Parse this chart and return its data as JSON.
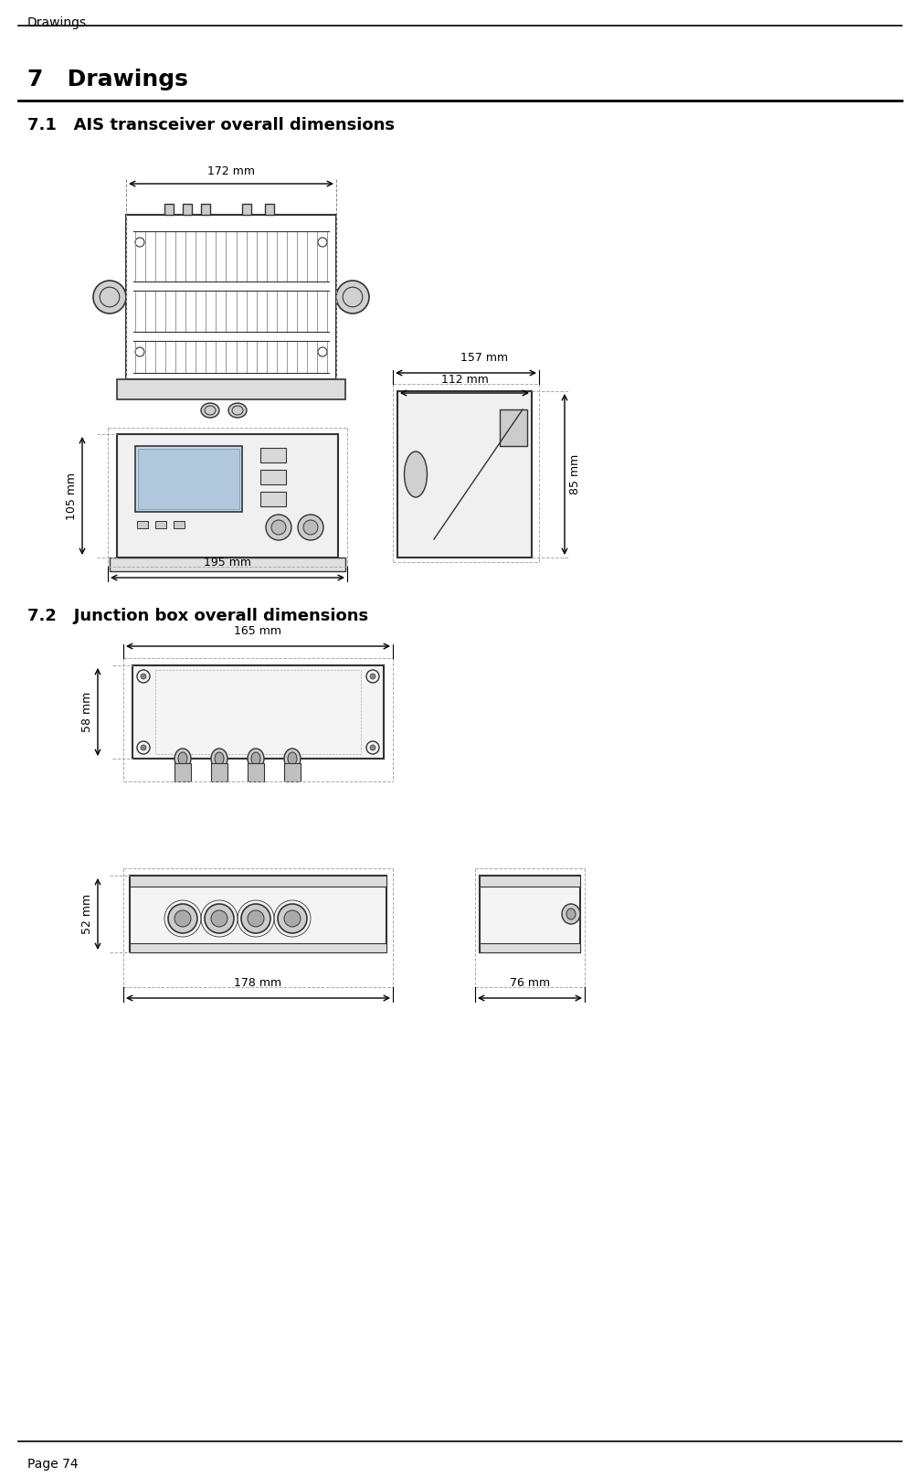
{
  "page_header": "Drawings",
  "chapter_number": "7",
  "chapter_title": "Drawings",
  "section_71": "7.1   AIS transceiver overall dimensions",
  "section_72": "7.2   Junction box overall dimensions",
  "page_footer": "Page 74",
  "dim_172": "172 mm",
  "dim_195": "195 mm",
  "dim_105": "105 mm",
  "dim_157": "157 mm",
  "dim_112": "112 mm",
  "dim_85": "85 mm",
  "dim_165": "165 mm",
  "dim_58": "58 mm",
  "dim_178": "178 mm",
  "dim_52": "52 mm",
  "dim_76": "76 mm",
  "bg_color": "#ffffff",
  "line_color": "#000000",
  "drawing_line_color": "#333333",
  "light_gray": "#aaaaaa",
  "medium_gray": "#888888",
  "dark_gray": "#555555",
  "fill_light": "#e8e8e8",
  "fill_medium": "#cccccc",
  "fill_dark": "#999999"
}
